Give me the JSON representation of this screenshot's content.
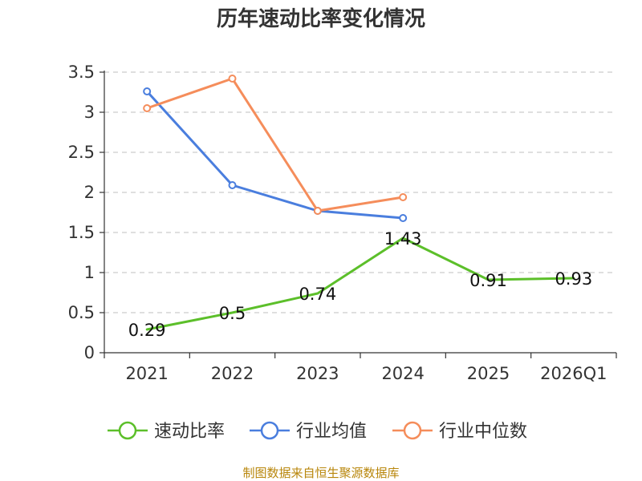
{
  "chart_data": {
    "type": "line",
    "title": "历年速动比率变化情况",
    "categories": [
      "2021",
      "2022",
      "2023",
      "2024",
      "2025",
      "2026Q1"
    ],
    "y_ticks": [
      "0",
      "0.5",
      "1",
      "1.5",
      "2",
      "2.5",
      "3",
      "3.5"
    ],
    "ylim": [
      0,
      3.5
    ],
    "grid": true,
    "legend_position": "bottom",
    "series": [
      {
        "name": "速动比率",
        "color": "#5cbf2a",
        "values": [
          0.29,
          0.5,
          0.74,
          1.43,
          0.91,
          0.93
        ],
        "labels": [
          "0.29",
          "0.5",
          "0.74",
          "1.43",
          "0.91",
          "0.93"
        ],
        "show_markers": false
      },
      {
        "name": "行业均值",
        "color": "#4a7ede",
        "values": [
          3.26,
          2.09,
          1.77,
          1.68,
          null,
          null
        ],
        "show_markers": true
      },
      {
        "name": "行业中位数",
        "color": "#f58d5b",
        "values": [
          3.05,
          3.42,
          1.77,
          1.94,
          null,
          null
        ],
        "show_markers": true
      }
    ]
  },
  "source": "制图数据来自恒生聚源数据库"
}
